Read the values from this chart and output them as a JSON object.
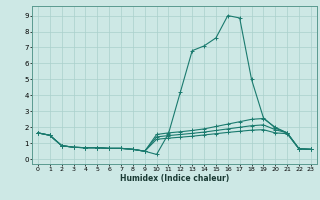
{
  "xlabel": "Humidex (Indice chaleur)",
  "xlim": [
    -0.5,
    23.5
  ],
  "ylim": [
    -0.3,
    9.6
  ],
  "xticks": [
    0,
    1,
    2,
    3,
    4,
    5,
    6,
    7,
    8,
    9,
    10,
    11,
    12,
    13,
    14,
    15,
    16,
    17,
    18,
    19,
    20,
    21,
    22,
    23
  ],
  "yticks": [
    0,
    1,
    2,
    3,
    4,
    5,
    6,
    7,
    8,
    9
  ],
  "bg_color": "#cde8e5",
  "grid_color": "#aad0cc",
  "line_color": "#1a7a6e",
  "lines": [
    {
      "x": [
        0,
        1,
        2,
        3,
        4,
        5,
        6,
        7,
        8,
        9,
        10,
        11,
        12,
        13,
        14,
        15,
        16,
        17,
        18,
        19,
        20,
        21,
        22,
        23
      ],
      "y": [
        1.65,
        1.5,
        0.85,
        0.75,
        0.72,
        0.72,
        0.68,
        0.68,
        0.62,
        0.5,
        0.3,
        1.6,
        4.2,
        6.8,
        7.1,
        7.6,
        9.0,
        8.85,
        5.0,
        2.6,
        1.95,
        1.65,
        0.65,
        0.62
      ]
    },
    {
      "x": [
        0,
        1,
        2,
        3,
        4,
        5,
        6,
        7,
        8,
        9,
        10,
        11,
        12,
        13,
        14,
        15,
        16,
        17,
        18,
        19,
        20,
        21,
        22,
        23
      ],
      "y": [
        1.65,
        1.5,
        0.85,
        0.75,
        0.72,
        0.72,
        0.68,
        0.68,
        0.62,
        0.5,
        1.55,
        1.65,
        1.72,
        1.8,
        1.9,
        2.05,
        2.2,
        2.35,
        2.5,
        2.55,
        2.0,
        1.65,
        0.65,
        0.62
      ]
    },
    {
      "x": [
        0,
        1,
        2,
        3,
        4,
        5,
        6,
        7,
        8,
        9,
        10,
        11,
        12,
        13,
        14,
        15,
        16,
        17,
        18,
        19,
        20,
        21,
        22,
        23
      ],
      "y": [
        1.65,
        1.5,
        0.85,
        0.75,
        0.72,
        0.72,
        0.68,
        0.68,
        0.62,
        0.5,
        1.4,
        1.48,
        1.55,
        1.62,
        1.7,
        1.8,
        1.9,
        2.0,
        2.1,
        2.15,
        1.85,
        1.65,
        0.65,
        0.62
      ]
    },
    {
      "x": [
        0,
        1,
        2,
        3,
        4,
        5,
        6,
        7,
        8,
        9,
        10,
        11,
        12,
        13,
        14,
        15,
        16,
        17,
        18,
        19,
        20,
        21,
        22,
        23
      ],
      "y": [
        1.65,
        1.5,
        0.85,
        0.75,
        0.72,
        0.72,
        0.68,
        0.68,
        0.62,
        0.5,
        1.25,
        1.32,
        1.38,
        1.44,
        1.52,
        1.6,
        1.68,
        1.75,
        1.82,
        1.85,
        1.65,
        1.6,
        0.65,
        0.62
      ]
    }
  ]
}
